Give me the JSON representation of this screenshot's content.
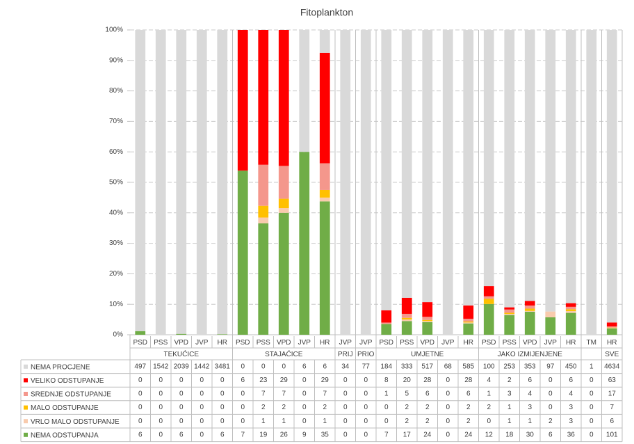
{
  "chart_data": {
    "type": "bar",
    "stacking": "percent",
    "title": "Fitoplankton",
    "groups": [
      {
        "label": "TEKUĆICE",
        "categories": [
          "PSD",
          "PSS",
          "VPD",
          "JVP",
          "HR"
        ]
      },
      {
        "label": "STAJAĆICE",
        "categories": [
          "PSD",
          "PSS",
          "VPD",
          "JVP",
          "HR"
        ]
      },
      {
        "label": "PRIJ",
        "categories": [
          "JVP"
        ]
      },
      {
        "label": "PRIO",
        "categories": [
          "JVP"
        ]
      },
      {
        "label": "UMJETNE",
        "categories": [
          "PSD",
          "PSS",
          "VPD",
          "JVP",
          "HR"
        ]
      },
      {
        "label": "JAKO IZMIJENJENE",
        "categories": [
          "PSD",
          "PSS",
          "VPD",
          "JVP",
          "HR"
        ]
      },
      {
        "label": null,
        "categories": [
          "TM"
        ]
      },
      {
        "label": "SVE",
        "categories": [
          "HR"
        ]
      }
    ],
    "series": [
      {
        "name": "NEMA PROCJENE",
        "color": "#d9d9d9",
        "values": [
          497,
          1542,
          2039,
          1442,
          3481,
          0,
          0,
          0,
          6,
          6,
          34,
          77,
          184,
          333,
          517,
          68,
          585,
          100,
          253,
          353,
          97,
          450,
          1,
          4634
        ]
      },
      {
        "name": "VELIKO ODSTUPANJE",
        "color": "#ff0000",
        "values": [
          0,
          0,
          0,
          0,
          0,
          6,
          23,
          29,
          0,
          29,
          0,
          0,
          8,
          20,
          28,
          0,
          28,
          4,
          2,
          6,
          0,
          6,
          0,
          63
        ]
      },
      {
        "name": "SREDNJE ODSTUPANJE",
        "color": "#f4978c",
        "values": [
          0,
          0,
          0,
          0,
          0,
          0,
          7,
          7,
          0,
          7,
          0,
          0,
          1,
          5,
          6,
          0,
          6,
          1,
          3,
          4,
          0,
          4,
          0,
          17
        ]
      },
      {
        "name": "MALO ODSTUPANJE",
        "color": "#ffc000",
        "values": [
          0,
          0,
          0,
          0,
          0,
          0,
          2,
          2,
          0,
          2,
          0,
          0,
          0,
          2,
          2,
          0,
          2,
          2,
          1,
          3,
          0,
          3,
          0,
          7
        ]
      },
      {
        "name": "VRLO MALO ODSTUPANJE",
        "color": "#f8cbad",
        "values": [
          0,
          0,
          0,
          0,
          0,
          0,
          1,
          1,
          0,
          1,
          0,
          0,
          0,
          2,
          2,
          0,
          2,
          0,
          1,
          1,
          2,
          3,
          0,
          6
        ]
      },
      {
        "name": "NEMA ODSTUPANJA",
        "color": "#70ad47",
        "values": [
          6,
          0,
          6,
          0,
          6,
          7,
          19,
          26,
          9,
          35,
          0,
          0,
          7,
          17,
          24,
          0,
          24,
          12,
          18,
          30,
          6,
          36,
          0,
          101
        ]
      }
    ],
    "ylim": [
      0,
      100
    ],
    "yticks": [
      {
        "value": 0,
        "label": "0%"
      },
      {
        "value": 10,
        "label": "10%"
      },
      {
        "value": 20,
        "label": "20%"
      },
      {
        "value": 30,
        "label": "30%"
      },
      {
        "value": 40,
        "label": "40%"
      },
      {
        "value": 50,
        "label": "50%"
      },
      {
        "value": 60,
        "label": "60%"
      },
      {
        "value": 70,
        "label": "70%"
      },
      {
        "value": 80,
        "label": "80%"
      },
      {
        "value": 90,
        "label": "90%"
      },
      {
        "value": 100,
        "label": "100%"
      }
    ],
    "grid": true
  }
}
